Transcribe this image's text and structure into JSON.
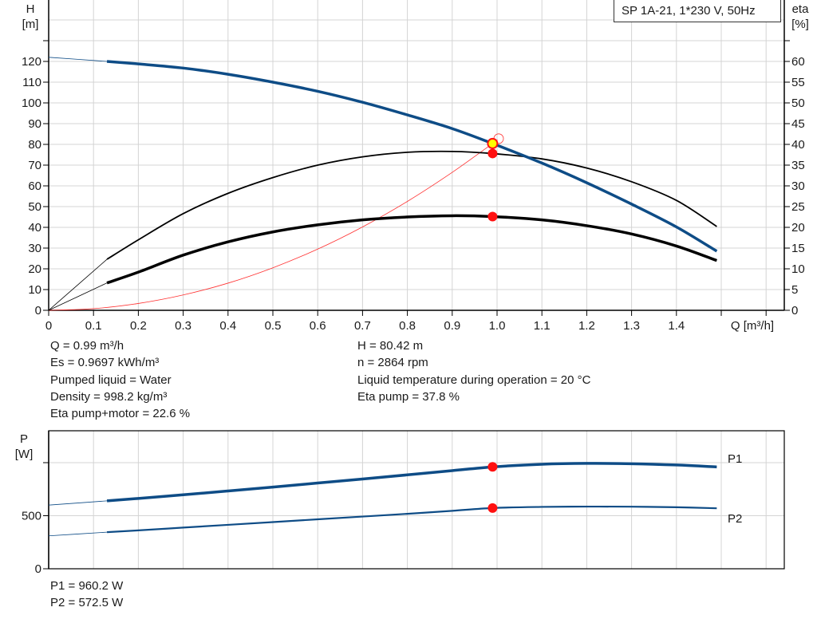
{
  "legend_title": "SP 1A-21, 1*230 V, 50Hz",
  "colors": {
    "head": "#0e4c86",
    "eta": "#000000",
    "system": "#ff3030",
    "point": "#ff1010",
    "op_point": "#ffff00",
    "grid": "#d4d4d4"
  },
  "chart_data": [
    {
      "type": "line",
      "title": "",
      "xlabel": "Q [m³/h]",
      "ylabel": "H\n[m]",
      "y2label": "eta\n[%]",
      "xlim": [
        0,
        1.6
      ],
      "ylim": [
        0,
        150
      ],
      "y2lim": [
        0,
        75
      ],
      "grid": true,
      "x_ticks": [
        "0",
        "0.1",
        "0.2",
        "0.3",
        "0.4",
        "0.5",
        "0.6",
        "0.7",
        "0.8",
        "0.9",
        "1.0",
        "1.1",
        "1.2",
        "1.3",
        "1.4"
      ],
      "y_ticks": [
        "0",
        "10",
        "20",
        "30",
        "40",
        "50",
        "60",
        "70",
        "80",
        "90",
        "100",
        "110",
        "120"
      ],
      "y2_ticks": [
        "0",
        "5",
        "10",
        "15",
        "20",
        "25",
        "30",
        "35",
        "40",
        "45",
        "50",
        "55",
        "60"
      ],
      "series": [
        {
          "key": "head",
          "axis": "left",
          "start_thick": 0.13,
          "x": [
            0,
            0.13,
            0.2,
            0.3,
            0.4,
            0.5,
            0.6,
            0.7,
            0.8,
            0.9,
            0.99,
            1.1,
            1.2,
            1.3,
            1.4,
            1.49
          ],
          "y": [
            122,
            120,
            118.8,
            116.8,
            113.8,
            110,
            105.6,
            100.3,
            94.2,
            87.6,
            80.42,
            71,
            61.5,
            51.2,
            40.2,
            28.5
          ]
        },
        {
          "key": "eta-pump",
          "axis": "right",
          "start_thick": 0.13,
          "x": [
            0,
            0.13,
            0.2,
            0.3,
            0.4,
            0.5,
            0.6,
            0.7,
            0.8,
            0.9,
            0.99,
            1.1,
            1.2,
            1.3,
            1.4,
            1.49
          ],
          "y": [
            0,
            12.3,
            17,
            23.3,
            28.2,
            32,
            35,
            37,
            38.1,
            38.3,
            37.8,
            36.5,
            34.3,
            31,
            26.5,
            20.2
          ]
        },
        {
          "key": "eta-pump-motor",
          "axis": "right",
          "start_thick": 0.13,
          "x": [
            0,
            0.13,
            0.2,
            0.3,
            0.4,
            0.5,
            0.6,
            0.7,
            0.8,
            0.9,
            0.99,
            1.1,
            1.2,
            1.3,
            1.4,
            1.49
          ],
          "y": [
            0,
            6.6,
            9.2,
            13.3,
            16.5,
            18.9,
            20.6,
            21.8,
            22.5,
            22.8,
            22.6,
            21.8,
            20.4,
            18.4,
            15.5,
            12
          ]
        },
        {
          "key": "system-curve",
          "axis": "left",
          "x": [
            0,
            0.1,
            0.2,
            0.3,
            0.4,
            0.5,
            0.6,
            0.7,
            0.8,
            0.9,
            0.99,
            1.0
          ],
          "y": [
            0,
            0.8,
            3.3,
            7.4,
            13.1,
            20.5,
            29.5,
            40.2,
            52.5,
            66.5,
            80.42,
            82
          ]
        }
      ],
      "points": [
        {
          "key": "op-head",
          "x": 0.99,
          "y": 80.42,
          "axis": "left"
        },
        {
          "key": "op-eta-pump",
          "x": 0.99,
          "y": 37.8,
          "axis": "right"
        },
        {
          "key": "op-eta-total",
          "x": 0.99,
          "y": 22.6,
          "axis": "right"
        }
      ]
    },
    {
      "type": "line",
      "title": "",
      "ylabel": "P\n[W]",
      "xlim": [
        0,
        1.6
      ],
      "ylim": [
        0,
        1300
      ],
      "grid": true,
      "y_ticks": [
        "0",
        "500",
        ""
      ],
      "series": [
        {
          "name": "P1",
          "start_thick": 0.13,
          "x": [
            0,
            0.13,
            0.2,
            0.3,
            0.4,
            0.5,
            0.6,
            0.7,
            0.8,
            0.9,
            0.99,
            1.1,
            1.2,
            1.3,
            1.4,
            1.49
          ],
          "y": [
            600,
            640,
            663,
            697,
            733,
            770,
            808,
            846,
            885,
            925,
            960,
            985,
            993,
            990,
            978,
            960
          ]
        },
        {
          "name": "P2",
          "start_thick": 0.13,
          "x": [
            0,
            0.13,
            0.2,
            0.3,
            0.4,
            0.5,
            0.6,
            0.7,
            0.8,
            0.9,
            0.99,
            1.1,
            1.2,
            1.3,
            1.4,
            1.49
          ],
          "y": [
            310,
            345,
            362,
            388,
            414,
            440,
            466,
            492,
            518,
            546,
            572.5,
            583,
            586,
            585,
            580,
            570
          ]
        }
      ],
      "points": [
        {
          "key": "op-p1",
          "x": 0.99,
          "y": 960.2
        },
        {
          "key": "op-p2",
          "x": 0.99,
          "y": 572.5
        }
      ]
    }
  ],
  "info_left": [
    "Q = 0.99 m³/h",
    "Es = 0.9697 kWh/m³",
    "Pumped liquid = Water",
    "Density = 998.2 kg/m³",
    "Eta pump+motor = 22.6 %"
  ],
  "info_right": [
    "H = 80.42 m",
    "n = 2864 rpm",
    "Liquid temperature during operation = 20 °C",
    "Eta pump = 37.8 %"
  ],
  "power_info": [
    "P1 = 960.2 W",
    "P2 = 572.5 W"
  ]
}
